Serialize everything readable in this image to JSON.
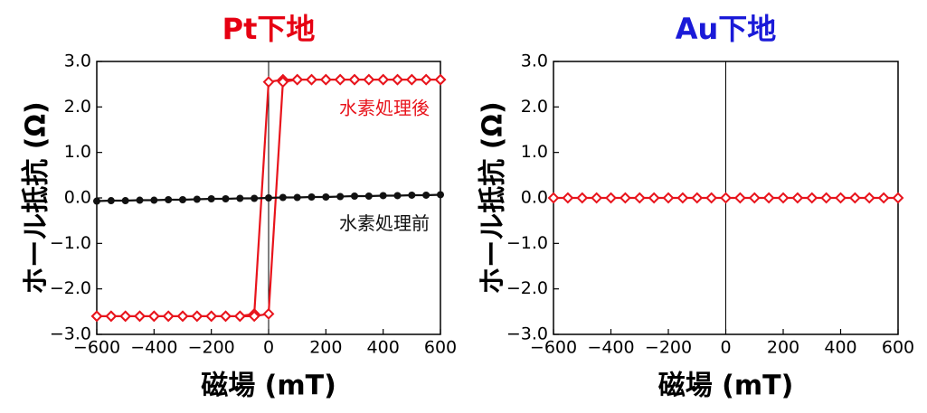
{
  "chart_data": [
    {
      "type": "line",
      "title": "Pt下地",
      "title_color": "#e60012",
      "xlabel": "磁場 (mT)",
      "ylabel": "ホール抵抗 (Ω)",
      "xlim": [
        -600,
        600
      ],
      "ylim": [
        -3,
        3
      ],
      "zero_line": true,
      "xticks": [
        {
          "value": -600,
          "label": "−600"
        },
        {
          "value": -400,
          "label": "−400"
        },
        {
          "value": -200,
          "label": "−200"
        },
        0,
        200,
        400,
        600
      ],
      "yticks": [
        {
          "value": -3,
          "label": "−3.0"
        },
        {
          "value": -2,
          "label": "−2.0"
        },
        {
          "value": -1,
          "label": "−1.0"
        },
        {
          "value": 0,
          "label": "0.0"
        },
        {
          "value": 1,
          "label": "1.0"
        },
        {
          "value": 2,
          "label": "2.0"
        },
        {
          "value": 3,
          "label": "3.0"
        }
      ],
      "series": [
        {
          "name": "水素処理後",
          "color": "#e8141c",
          "marker": "diamond-open",
          "x": [
            600,
            550,
            500,
            450,
            400,
            350,
            300,
            250,
            200,
            150,
            100,
            50,
            0,
            -50,
            -100,
            -150,
            -200,
            -250,
            -300,
            -350,
            -400,
            -450,
            -500,
            -550,
            -600,
            -600,
            -550,
            -500,
            -450,
            -400,
            -350,
            -300,
            -250,
            -200,
            -150,
            -100,
            -50,
            0,
            50,
            100,
            150,
            200,
            250,
            300,
            350,
            400,
            450,
            500,
            550,
            600
          ],
          "values": [
            2.6,
            2.6,
            2.6,
            2.6,
            2.6,
            2.6,
            2.6,
            2.6,
            2.6,
            2.6,
            2.6,
            2.6,
            2.55,
            -2.55,
            -2.6,
            -2.6,
            -2.6,
            -2.6,
            -2.6,
            -2.6,
            -2.6,
            -2.6,
            -2.6,
            -2.6,
            -2.6,
            -2.6,
            -2.6,
            -2.6,
            -2.6,
            -2.6,
            -2.6,
            -2.6,
            -2.6,
            -2.6,
            -2.6,
            -2.6,
            -2.6,
            -2.55,
            2.55,
            2.6,
            2.6,
            2.6,
            2.6,
            2.6,
            2.6,
            2.6,
            2.6,
            2.6,
            2.6,
            2.6
          ]
        },
        {
          "name": "水素処理前",
          "color": "#111111",
          "marker": "circle",
          "x": [
            -600,
            -550,
            -500,
            -450,
            -400,
            -350,
            -300,
            -250,
            -200,
            -150,
            -100,
            -50,
            0,
            50,
            100,
            150,
            200,
            250,
            300,
            350,
            400,
            450,
            500,
            550,
            600
          ],
          "values": [
            -0.07,
            -0.06,
            -0.06,
            -0.05,
            -0.05,
            -0.04,
            -0.04,
            -0.03,
            -0.02,
            -0.02,
            -0.01,
            -0.01,
            0,
            0.01,
            0.01,
            0.02,
            0.02,
            0.03,
            0.04,
            0.04,
            0.05,
            0.05,
            0.06,
            0.06,
            0.07
          ]
        }
      ]
    },
    {
      "type": "line",
      "title": "Au下地",
      "title_color": "#1a1ad8",
      "xlabel": "磁場 (mT)",
      "ylabel": "ホール抵抗 (Ω)",
      "xlim": [
        -600,
        600
      ],
      "ylim": [
        -3,
        3
      ],
      "zero_line": true,
      "xticks": [
        {
          "value": -600,
          "label": "−600"
        },
        {
          "value": -400,
          "label": "−400"
        },
        {
          "value": -200,
          "label": "−200"
        },
        0,
        200,
        400,
        600
      ],
      "yticks": [
        {
          "value": -3,
          "label": "−3.0"
        },
        {
          "value": -2,
          "label": "−2.0"
        },
        {
          "value": -1,
          "label": "−1.0"
        },
        {
          "value": 0,
          "label": "0.0"
        },
        {
          "value": 1,
          "label": "1.0"
        },
        {
          "value": 2,
          "label": "2.0"
        },
        {
          "value": 3,
          "label": "3.0"
        }
      ],
      "series": [
        {
          "color": "#e8141c",
          "marker": "diamond-open",
          "x": [
            -600,
            -550,
            -500,
            -450,
            -400,
            -350,
            -300,
            -250,
            -200,
            -150,
            -100,
            -50,
            0,
            50,
            100,
            150,
            200,
            250,
            300,
            350,
            400,
            450,
            500,
            550,
            600
          ],
          "values": [
            0,
            0,
            0,
            0,
            0,
            0,
            0,
            0,
            0,
            0,
            0,
            0,
            0,
            0,
            0,
            0,
            0,
            0,
            0,
            0,
            0,
            0,
            0,
            0,
            0
          ]
        }
      ]
    }
  ]
}
